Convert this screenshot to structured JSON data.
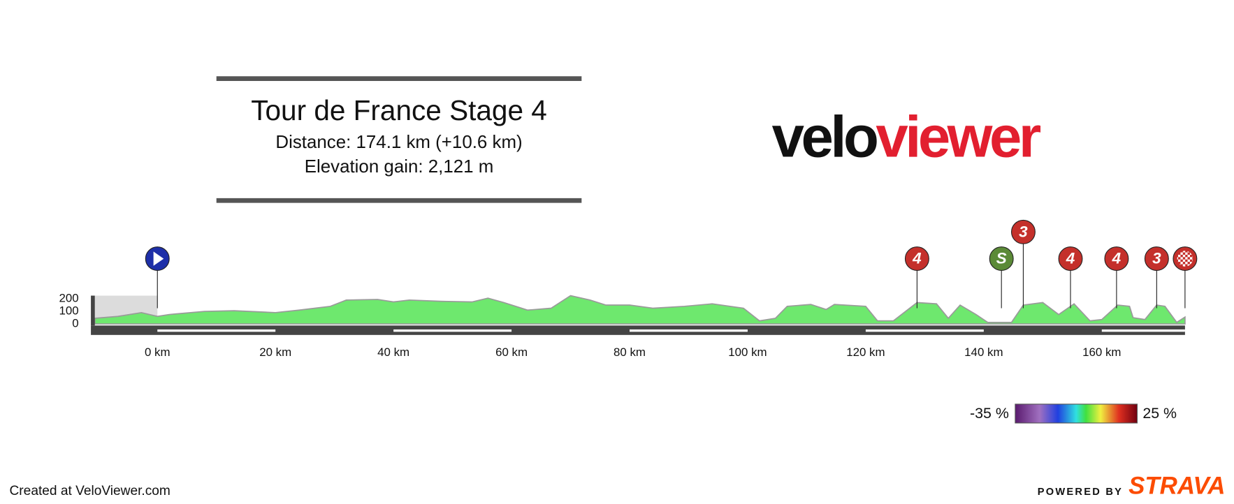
{
  "chart_data": {
    "type": "area",
    "title": "Tour de France Stage 4",
    "subtitle": [
      "Distance: 174.1 km (+10.6 km)",
      "Elevation gain: 2,121 m"
    ],
    "logo": {
      "dark": "velo",
      "red": "viewer"
    },
    "x": [
      -10.6,
      -6.7,
      -2.7,
      0,
      2,
      8,
      13,
      20,
      24,
      29.3,
      32,
      37.3,
      40,
      42.7,
      48,
      53.3,
      56,
      58.7,
      62.7,
      66.7,
      70,
      73.3,
      76,
      80,
      84,
      89.3,
      94,
      99.3,
      102,
      104.7,
      106.7,
      110.7,
      113.3,
      114.7,
      120,
      122,
      124.7,
      128.7,
      132,
      134,
      136,
      138.7,
      140.7,
      144.7,
      146.7,
      150,
      152.7,
      155.3,
      158,
      160,
      162.7,
      164.7,
      165.3,
      167.3,
      169.3,
      170.7,
      172.7,
      174.1
    ],
    "values": [
      45,
      60,
      90,
      60,
      75,
      100,
      105,
      90,
      110,
      140,
      190,
      195,
      175,
      190,
      180,
      175,
      205,
      170,
      110,
      125,
      225,
      190,
      150,
      150,
      125,
      140,
      160,
      125,
      25,
      45,
      140,
      155,
      115,
      155,
      140,
      25,
      25,
      170,
      160,
      45,
      150,
      75,
      12,
      12,
      150,
      170,
      75,
      160,
      25,
      35,
      150,
      140,
      50,
      35,
      150,
      140,
      12,
      55
    ],
    "color": "#6ee86e",
    "xticks": [
      {
        "value": 0,
        "label": "0 km"
      },
      {
        "value": 20,
        "label": "20 km"
      },
      {
        "value": 40,
        "label": "40 km"
      },
      {
        "value": 60,
        "label": "60 km"
      },
      {
        "value": 80,
        "label": "80 km"
      },
      {
        "value": 100,
        "label": "100 km"
      },
      {
        "value": 120,
        "label": "120 km"
      },
      {
        "value": 140,
        "label": "140 km"
      },
      {
        "value": 160,
        "label": "160 km"
      }
    ],
    "ylim": [
      0,
      200
    ],
    "yticks": [
      0,
      100,
      200
    ],
    "markers": [
      {
        "x": 0,
        "color": "#1e2fa8"
      },
      {
        "x": 128.7,
        "label": "4",
        "color": "#c4302b"
      },
      {
        "x": 143,
        "label": "S",
        "color": "#5b8a37"
      },
      {
        "x": 146.7,
        "label": "3",
        "color": "#c4302b"
      },
      {
        "x": 154.7,
        "label": "4",
        "color": "#c4302b"
      },
      {
        "x": 162.5,
        "label": "4",
        "color": "#c4302b"
      },
      {
        "x": 169.3,
        "label": "3",
        "color": "#c4302b"
      },
      {
        "x": 174.1,
        "color": "#c4302b"
      }
    ],
    "colorbar": [
      {
        "value": -35,
        "label": "-35 %"
      },
      {
        "value": 25,
        "label": "25 %"
      }
    ],
    "footer": {
      "left": "Created at VeloViewer.com",
      "powered": "POWERED BY",
      "brand": "STRAVA"
    }
  }
}
